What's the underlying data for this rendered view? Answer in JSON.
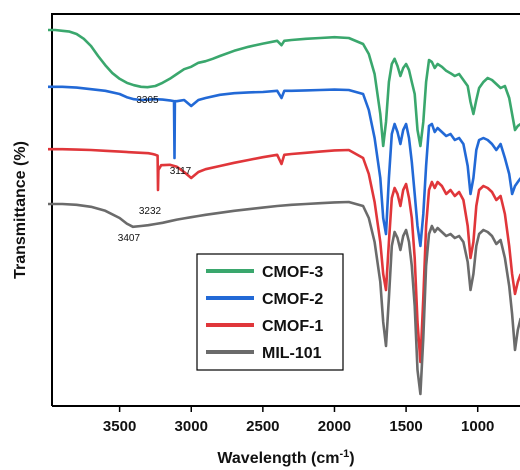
{
  "chart_data": {
    "type": "line",
    "xlabel": "Wavelength (cm",
    "xlabel_sup": "-1",
    "xlabel_end": ")",
    "ylabel": "Transmittance (%)",
    "xlim": [
      4000,
      700
    ],
    "x_reversed": true,
    "y_ticks_labeled": false,
    "xticks": [
      3500,
      3000,
      2500,
      2000,
      1500,
      1000
    ],
    "legend_position": "lower-center",
    "series": [
      {
        "name": "CMOF-3",
        "color": "#3aa76d",
        "x": [
          4000,
          3950,
          3900,
          3850,
          3800,
          3750,
          3700,
          3650,
          3600,
          3550,
          3500,
          3450,
          3400,
          3350,
          3305,
          3250,
          3200,
          3150,
          3100,
          3050,
          3000,
          2950,
          2900,
          2850,
          2800,
          2700,
          2600,
          2500,
          2400,
          2370,
          2350,
          2300,
          2200,
          2100,
          2000,
          1900,
          1800,
          1760,
          1720,
          1680,
          1660,
          1640,
          1620,
          1600,
          1580,
          1560,
          1540,
          1520,
          1500,
          1480,
          1460,
          1440,
          1420,
          1400,
          1380,
          1360,
          1340,
          1320,
          1300,
          1280,
          1250,
          1220,
          1190,
          1160,
          1130,
          1100,
          1070,
          1050,
          1030,
          1010,
          990,
          960,
          930,
          900,
          870,
          840,
          810,
          780,
          760,
          740,
          720,
          700
        ],
        "y": [
          99.0,
          99.0,
          98.8,
          98.6,
          98.0,
          96.8,
          95.0,
          92.5,
          90.2,
          88.2,
          86.8,
          85.8,
          85.2,
          84.8,
          84.7,
          85.0,
          85.8,
          86.8,
          88.0,
          89.2,
          89.8,
          90.8,
          91.2,
          91.8,
          92.5,
          93.8,
          94.8,
          95.6,
          96.3,
          95.2,
          96.3,
          96.5,
          96.8,
          97.0,
          97.2,
          97.0,
          95.5,
          93.0,
          88.0,
          78.0,
          70.0,
          76.0,
          86.0,
          90.5,
          91.8,
          90.0,
          87.5,
          89.5,
          90.5,
          89.0,
          86.0,
          83.0,
          74.0,
          70.0,
          76.0,
          86.0,
          91.5,
          91.0,
          89.5,
          90.5,
          89.8,
          88.8,
          88.2,
          87.5,
          88.0,
          86.5,
          85.0,
          81.0,
          78.0,
          81.5,
          84.5,
          86.0,
          87.0,
          86.5,
          85.5,
          84.5,
          85.0,
          82.0,
          78.0,
          74.0,
          75.0,
          75.5
        ]
      },
      {
        "name": "CMOF-2",
        "color": "#2269d6",
        "x": [
          4000,
          3900,
          3800,
          3700,
          3600,
          3500,
          3450,
          3400,
          3350,
          3300,
          3250,
          3200,
          3150,
          3120,
          3117,
          3114,
          3100,
          3050,
          3000,
          2950,
          2900,
          2800,
          2700,
          2600,
          2500,
          2400,
          2370,
          2350,
          2300,
          2200,
          2100,
          2000,
          1900,
          1800,
          1760,
          1720,
          1680,
          1660,
          1640,
          1620,
          1600,
          1580,
          1560,
          1540,
          1520,
          1500,
          1480,
          1460,
          1440,
          1420,
          1400,
          1380,
          1360,
          1340,
          1320,
          1300,
          1280,
          1250,
          1220,
          1190,
          1160,
          1130,
          1100,
          1070,
          1050,
          1030,
          1010,
          990,
          960,
          930,
          900,
          870,
          840,
          810,
          780,
          760,
          740,
          720,
          700
        ],
        "y": [
          84.8,
          84.8,
          84.6,
          84.2,
          83.8,
          83.0,
          82.2,
          81.7,
          81.5,
          81.6,
          81.7,
          81.6,
          81.4,
          81.2,
          67.0,
          81.2,
          81.2,
          81.5,
          80.0,
          81.5,
          82.0,
          82.8,
          83.2,
          83.4,
          83.5,
          83.8,
          82.0,
          83.8,
          83.8,
          83.9,
          84.0,
          84.1,
          84.0,
          83.0,
          79.0,
          72.0,
          62.0,
          52.0,
          48.0,
          62.0,
          73.0,
          75.5,
          73.5,
          70.5,
          74.0,
          75.5,
          72.0,
          66.0,
          58.0,
          50.0,
          45.0,
          53.0,
          65.0,
          75.0,
          75.5,
          73.5,
          74.5,
          73.5,
          72.5,
          73.0,
          71.5,
          72.0,
          70.5,
          65.0,
          58.0,
          62.0,
          69.0,
          71.5,
          72.0,
          71.5,
          70.5,
          69.0,
          70.5,
          67.0,
          63.0,
          58.0,
          60.0,
          61.0,
          62.0
        ]
      },
      {
        "name": "CMOF-1",
        "color": "#e0363a",
        "x": [
          4000,
          3900,
          3800,
          3700,
          3600,
          3500,
          3400,
          3350,
          3300,
          3270,
          3250,
          3235,
          3232,
          3229,
          3210,
          3150,
          3100,
          3050,
          3000,
          2950,
          2900,
          2800,
          2700,
          2600,
          2500,
          2400,
          2370,
          2350,
          2300,
          2200,
          2100,
          2000,
          1900,
          1800,
          1760,
          1720,
          1680,
          1660,
          1640,
          1620,
          1600,
          1580,
          1560,
          1540,
          1520,
          1500,
          1480,
          1460,
          1440,
          1420,
          1400,
          1380,
          1360,
          1340,
          1320,
          1300,
          1280,
          1250,
          1220,
          1190,
          1160,
          1130,
          1100,
          1070,
          1050,
          1030,
          1010,
          990,
          960,
          930,
          900,
          870,
          840,
          810,
          780,
          760,
          740,
          720,
          700
        ],
        "y": [
          69.2,
          69.2,
          69.1,
          69.0,
          68.8,
          68.6,
          68.4,
          68.3,
          68.2,
          68.0,
          67.8,
          67.6,
          59.0,
          64.0,
          65.2,
          65.3,
          64.8,
          63.5,
          62.0,
          63.5,
          64.2,
          65.0,
          65.8,
          66.5,
          67.2,
          67.8,
          65.5,
          67.8,
          68.0,
          68.3,
          68.6,
          68.9,
          69.0,
          67.0,
          63.0,
          56.0,
          46.0,
          38.0,
          34.0,
          46.0,
          57.0,
          59.5,
          58.0,
          55.0,
          59.0,
          60.5,
          57.0,
          52.0,
          42.0,
          26.0,
          16.0,
          32.0,
          50.0,
          59.0,
          61.0,
          59.5,
          61.0,
          60.0,
          58.0,
          59.0,
          57.5,
          58.5,
          56.5,
          50.0,
          42.0,
          46.0,
          55.0,
          59.0,
          60.0,
          59.5,
          58.5,
          56.5,
          57.5,
          53.0,
          45.0,
          38.0,
          33.0,
          36.0,
          38.0
        ]
      },
      {
        "name": "MIL-101",
        "color": "#6b6b6b",
        "x": [
          4000,
          3900,
          3800,
          3700,
          3600,
          3500,
          3450,
          3407,
          3350,
          3300,
          3250,
          3200,
          3150,
          3100,
          3050,
          3000,
          2950,
          2900,
          2800,
          2700,
          2600,
          2500,
          2400,
          2300,
          2200,
          2100,
          2000,
          1900,
          1800,
          1760,
          1720,
          1680,
          1660,
          1640,
          1620,
          1600,
          1580,
          1560,
          1540,
          1520,
          1500,
          1480,
          1460,
          1440,
          1420,
          1400,
          1380,
          1360,
          1340,
          1320,
          1300,
          1280,
          1250,
          1220,
          1190,
          1160,
          1130,
          1100,
          1070,
          1050,
          1030,
          1010,
          990,
          960,
          930,
          900,
          870,
          840,
          810,
          780,
          760,
          740,
          720,
          700
        ],
        "y": [
          55.5,
          55.5,
          55.3,
          54.8,
          53.8,
          52.0,
          50.6,
          49.8,
          50.0,
          50.2,
          50.5,
          50.8,
          51.2,
          51.6,
          51.9,
          52.2,
          52.5,
          52.8,
          53.3,
          53.8,
          54.2,
          54.6,
          55.0,
          55.3,
          55.5,
          55.7,
          55.9,
          56.0,
          55.0,
          52.0,
          46.0,
          36.0,
          26.0,
          20.0,
          32.0,
          45.0,
          48.5,
          47.0,
          44.0,
          47.5,
          49.0,
          46.0,
          40.0,
          30.0,
          14.0,
          8.0,
          22.0,
          40.0,
          48.0,
          50.0,
          48.5,
          49.5,
          48.5,
          47.5,
          48.0,
          47.0,
          47.5,
          46.0,
          41.0,
          34.0,
          38.0,
          45.0,
          48.0,
          49.0,
          48.5,
          47.5,
          45.5,
          46.5,
          42.0,
          35.0,
          28.0,
          19.0,
          24.0,
          27.0
        ]
      }
    ],
    "annotations": [
      {
        "text": "3305",
        "x": 3305,
        "series": "CMOF-3"
      },
      {
        "text": "3117",
        "x": 3117,
        "series": "CMOF-2"
      },
      {
        "text": "3232",
        "x": 3232,
        "series": "CMOF-1"
      },
      {
        "text": "3407",
        "x": 3407,
        "series": "MIL-101"
      }
    ]
  }
}
